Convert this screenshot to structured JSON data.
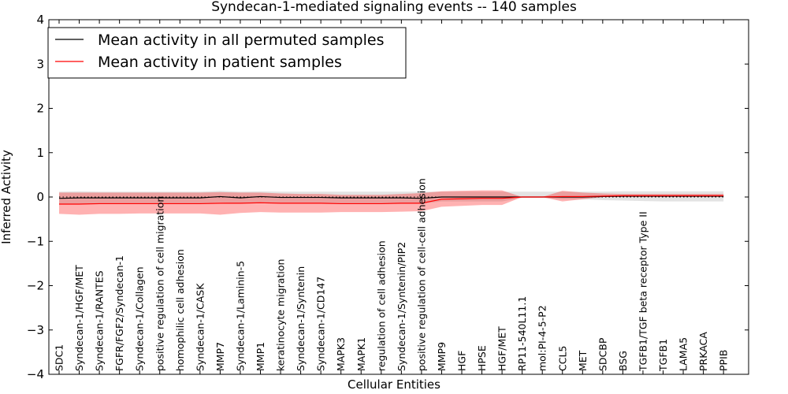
{
  "chart_data": {
    "type": "line",
    "title": "Syndecan-1-mediated signaling events -- 140 samples",
    "xlabel": "Cellular Entities",
    "ylabel": "Inferred Activity",
    "ylim": [
      -4,
      4
    ],
    "yticks": [
      "4",
      "3",
      "2",
      "1",
      "0",
      "−1",
      "−2",
      "−3",
      "−4"
    ],
    "categories": [
      "SDC1",
      "Syndecan-1/HGF/MET",
      "Syndecan-1/RANTES",
      "FGFR/FGF2/Syndecan-1",
      "Syndecan-1/Collagen",
      "positive regulation of cell migration",
      "homophilic cell adhesion",
      "Syndecan-1/CASK",
      "MMP7",
      "Syndecan-1/Laminin-5",
      "MMP1",
      "keratinocyte migration",
      "Syndecan-1/Syntenin",
      "Syndecan-1/CD147",
      "MAPK3",
      "MAPK1",
      "regulation of cell adhesion",
      "Syndecan-1/Syntenin/PIP2",
      "positive regulation of cell-cell adhesion",
      "MMP9",
      "HGF",
      "HPSE",
      "HGF/MET",
      "RP11-540L11.1",
      "mol:PI-4-5-P2",
      "CCL5",
      "MET",
      "SDCBP",
      "BSG",
      "TGFB1/TGF beta receptor Type II",
      "TGFB1",
      "LAMA5",
      "PRKACA",
      "PPIB"
    ],
    "legend_position": "top-left",
    "series": [
      {
        "name": "Mean activity in all permuted samples",
        "color": "#000000",
        "values": [
          -0.03,
          -0.02,
          -0.02,
          -0.02,
          -0.02,
          -0.02,
          -0.02,
          -0.02,
          0.01,
          -0.02,
          0.01,
          -0.01,
          -0.01,
          -0.01,
          -0.02,
          -0.02,
          -0.02,
          -0.02,
          -0.03,
          0.0,
          0.0,
          0.0,
          0.0,
          0.0,
          0.0,
          0.0,
          0.0,
          0.01,
          0.02,
          0.02,
          0.02,
          0.02,
          0.02,
          0.02
        ],
        "band_upper": [
          0.12,
          0.13,
          0.12,
          0.12,
          0.12,
          0.12,
          0.12,
          0.12,
          0.14,
          0.12,
          0.13,
          0.12,
          0.12,
          0.12,
          0.12,
          0.12,
          0.12,
          0.12,
          0.12,
          0.12,
          0.12,
          0.12,
          0.12,
          0.12,
          0.12,
          0.12,
          0.12,
          0.12,
          0.13,
          0.13,
          0.13,
          0.13,
          0.13,
          0.13
        ],
        "band_lower": [
          -0.15,
          -0.15,
          -0.15,
          -0.15,
          -0.15,
          -0.15,
          -0.15,
          -0.15,
          -0.12,
          -0.15,
          -0.12,
          -0.13,
          -0.13,
          -0.13,
          -0.14,
          -0.14,
          -0.14,
          -0.14,
          -0.15,
          -0.1,
          -0.1,
          -0.1,
          -0.1,
          -0.02,
          -0.02,
          -0.05,
          -0.05,
          -0.07,
          -0.08,
          -0.09,
          -0.1,
          -0.1,
          -0.1,
          -0.1
        ]
      },
      {
        "name": "Mean activity in patient samples",
        "color": "#ff0000",
        "values": [
          -0.16,
          -0.16,
          -0.15,
          -0.15,
          -0.15,
          -0.15,
          -0.15,
          -0.15,
          -0.14,
          -0.14,
          -0.13,
          -0.14,
          -0.14,
          -0.14,
          -0.15,
          -0.15,
          -0.15,
          -0.14,
          -0.14,
          -0.05,
          -0.04,
          -0.03,
          -0.03,
          0.0,
          0.0,
          0.01,
          0.01,
          0.02,
          0.03,
          0.03,
          0.03,
          0.03,
          0.03,
          0.03
        ],
        "band_upper": [
          0.1,
          0.1,
          0.1,
          0.1,
          0.1,
          0.1,
          0.1,
          0.1,
          0.11,
          0.1,
          0.1,
          0.08,
          0.07,
          0.07,
          0.05,
          0.05,
          0.05,
          0.07,
          0.09,
          0.13,
          0.14,
          0.15,
          0.15,
          0.0,
          0.0,
          0.14,
          0.1,
          0.08,
          0.07,
          0.07,
          0.07,
          0.07,
          0.07,
          0.07
        ],
        "band_lower": [
          -0.38,
          -0.4,
          -0.38,
          -0.38,
          -0.37,
          -0.37,
          -0.37,
          -0.37,
          -0.4,
          -0.36,
          -0.34,
          -0.35,
          -0.35,
          -0.35,
          -0.34,
          -0.34,
          -0.34,
          -0.33,
          -0.32,
          -0.22,
          -0.2,
          -0.18,
          -0.18,
          0.0,
          0.0,
          -0.1,
          -0.05,
          0.0,
          0.0,
          0.0,
          0.0,
          0.0,
          0.0,
          0.0
        ]
      }
    ]
  }
}
